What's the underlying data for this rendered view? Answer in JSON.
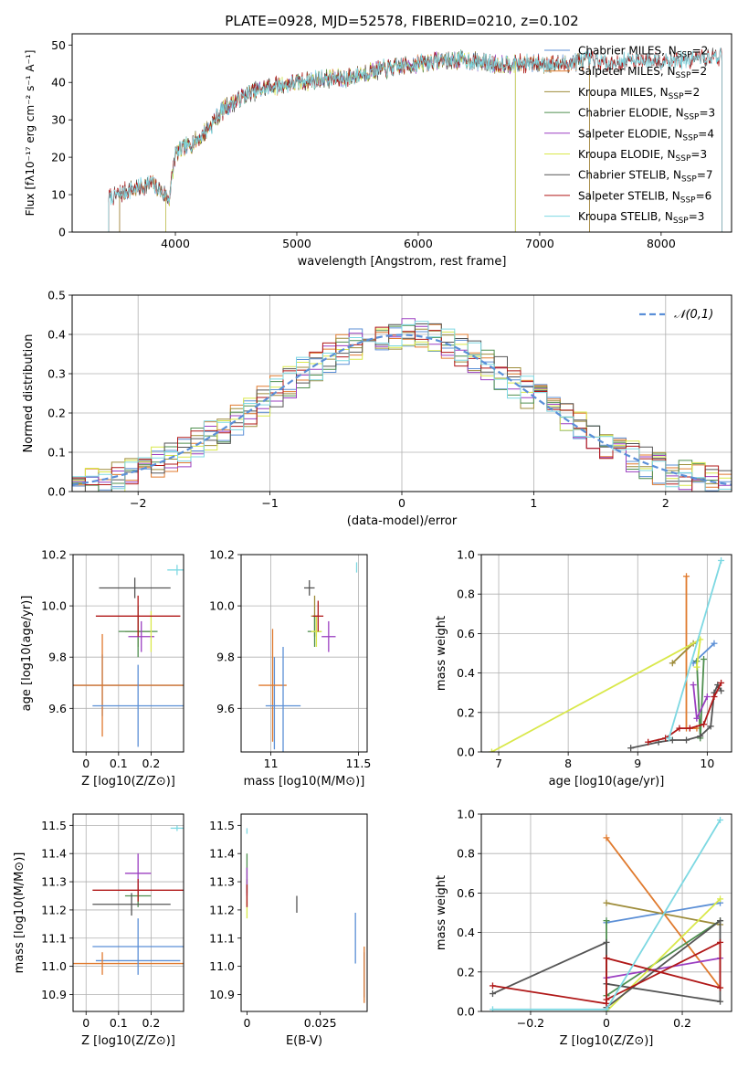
{
  "figure_title": "PLATE=0928, MJD=52578, FIBERID=0210, z=0.102",
  "model_names": [
    "Chabrier MILES",
    "Salpeter MILES",
    "Kroupa MILES",
    "Chabrier ELODIE",
    "Salpeter ELODIE",
    "Kroupa ELODIE",
    "Chabrier STELIB",
    "Salpeter STELIB",
    "Kroupa STELIB"
  ],
  "model_nssp": [
    2,
    2,
    2,
    3,
    4,
    3,
    7,
    6,
    3
  ],
  "model_colors": [
    "#5b8fd6",
    "#e07a2e",
    "#9e8c3a",
    "#4f8f4f",
    "#9b3fc1",
    "#d9e84a",
    "#555555",
    "#b01818",
    "#7dd8e2"
  ],
  "chart_data": [
    {
      "panel": "spectrum",
      "type": "line",
      "title": "PLATE=0928, MJD=52578, FIBERID=0210, z=0.102",
      "xlabel": "wavelength [Angstrom, rest frame]",
      "ylabel": "Flux [fλ10⁻¹⁷ erg cm⁻² s⁻¹ A⁻¹]",
      "xlim": [
        3150,
        8580
      ],
      "ylim": [
        0,
        53
      ],
      "xticks": [
        4000,
        5000,
        6000,
        7000,
        8000
      ],
      "yticks": [
        0,
        10,
        20,
        30,
        40,
        50
      ],
      "grid": false,
      "legend": "top-right",
      "continuum": {
        "x": [
          3450,
          3600,
          3800,
          3950,
          4000,
          4200,
          4400,
          4600,
          4800,
          5000,
          5200,
          5400,
          5600,
          5800,
          6000,
          6200,
          6400,
          6600,
          6800,
          7000,
          7200,
          7400,
          7600,
          7800,
          8000,
          8200,
          8400
        ],
        "y": [
          9,
          11,
          13,
          9,
          21,
          25,
          33,
          37,
          39,
          40,
          41,
          41,
          43,
          44,
          45,
          46,
          46,
          45,
          45,
          45,
          45,
          46,
          45,
          46,
          46,
          46,
          47
        ]
      },
      "noise_amplitude": 2.2,
      "series": [
        {
          "name": "Chabrier MILES, N_SSP=2",
          "x_range": [
            3540,
            7410
          ]
        },
        {
          "name": "Salpeter MILES, N_SSP=2",
          "x_range": [
            3540,
            7410
          ]
        },
        {
          "name": "Kroupa MILES, N_SSP=2",
          "x_range": [
            3540,
            7410
          ]
        },
        {
          "name": "Chabrier ELODIE, N_SSP=3",
          "x_range": [
            3920,
            6800
          ]
        },
        {
          "name": "Salpeter ELODIE, N_SSP=4",
          "x_range": [
            3920,
            6800
          ]
        },
        {
          "name": "Kroupa ELODIE, N_SSP=3",
          "x_range": [
            3920,
            6800
          ]
        },
        {
          "name": "Chabrier STELIB, N_SSP=7",
          "x_range": [
            3450,
            8500
          ]
        },
        {
          "name": "Salpeter STELIB, N_SSP=6",
          "x_range": [
            3450,
            8500
          ]
        },
        {
          "name": "Kroupa STELIB, N_SSP=3",
          "x_range": [
            3450,
            8500
          ]
        }
      ]
    },
    {
      "panel": "residuals",
      "type": "histogram",
      "xlabel": "(data-model)/error",
      "ylabel": "Normed distribution",
      "xlim": [
        -2.5,
        2.5
      ],
      "ylim": [
        0,
        0.5
      ],
      "xticks": [
        -2,
        -1,
        0,
        1,
        2
      ],
      "yticks": [
        0.0,
        0.1,
        0.2,
        0.3,
        0.4,
        0.5
      ],
      "bin_width": 0.1,
      "grid": true,
      "legend": "top-right",
      "reference_curve": "𝒩(0,1)"
    },
    {
      "panel": "age-vs-Z",
      "type": "errorbar",
      "xlabel": "Z [log10(Z/Z⊙)]",
      "ylabel": "age [log10(age/yr)]",
      "xlim": [
        -0.04,
        0.3
      ],
      "ylim": [
        9.43,
        10.2
      ],
      "xticks": [
        0.0,
        0.1,
        0.2
      ],
      "yticks": [
        9.6,
        9.8,
        10.0,
        10.2
      ],
      "grid": true,
      "points": [
        {
          "x": 0.05,
          "xerr": 0.25,
          "y": 9.69,
          "yerr": 0.12
        },
        {
          "x": 0.05,
          "xerr": 0.25,
          "y": 9.69,
          "yerr": 0.2
        },
        {
          "x": 0.16,
          "xerr": 0.04,
          "y": 9.9,
          "yerr": 0.06
        },
        {
          "x": 0.16,
          "xerr": 0.06,
          "y": 9.9,
          "yerr": 0.1
        },
        {
          "x": 0.17,
          "xerr": 0.04,
          "y": 9.88,
          "yerr": 0.06
        },
        {
          "x": 0.2,
          "xerr": 0.0,
          "y": 9.9,
          "yerr": 0.08
        },
        {
          "x": 0.15,
          "xerr": 0.11,
          "y": 10.07,
          "yerr": 0.04
        },
        {
          "x": 0.16,
          "xerr": 0.13,
          "y": 9.96,
          "yerr": 0.08
        },
        {
          "x": 0.28,
          "xerr": 0.03,
          "y": 10.14,
          "yerr": 0.02
        },
        {
          "x": 0.16,
          "xerr": 0.14,
          "y": 9.61,
          "yerr": 0.16
        }
      ]
    },
    {
      "panel": "age-vs-mass",
      "type": "errorbar",
      "xlabel": "mass [log10(M/M⊙)]",
      "ylabel": "",
      "xlim": [
        10.83,
        11.55
      ],
      "ylim": [
        9.43,
        10.2
      ],
      "xticks": [
        11.0,
        11.5
      ],
      "yticks": [
        9.6,
        9.8,
        10.0,
        10.2
      ],
      "grid": true,
      "points": [
        {
          "x": 11.02,
          "xerr": 0.0,
          "y": 9.62,
          "yerr": 0.18
        },
        {
          "x": 11.01,
          "xerr": 0.08,
          "y": 9.69,
          "yerr": 0.22
        },
        {
          "x": 11.25,
          "xerr": 0.02,
          "y": 9.96,
          "yerr": 0.08
        },
        {
          "x": 11.25,
          "xerr": 0.04,
          "y": 9.9,
          "yerr": 0.06
        },
        {
          "x": 11.33,
          "xerr": 0.04,
          "y": 9.88,
          "yerr": 0.06
        },
        {
          "x": 11.26,
          "xerr": 0.03,
          "y": 9.9,
          "yerr": 0.06
        },
        {
          "x": 11.22,
          "xerr": 0.03,
          "y": 10.07,
          "yerr": 0.03
        },
        {
          "x": 11.27,
          "xerr": 0.03,
          "y": 9.96,
          "yerr": 0.06
        },
        {
          "x": 11.49,
          "xerr": 0.0,
          "y": 10.15,
          "yerr": 0.02
        },
        {
          "x": 11.07,
          "xerr": 0.1,
          "y": 9.61,
          "yerr": 0.23
        }
      ]
    },
    {
      "panel": "weight-vs-age",
      "type": "line",
      "xlabel": "age [log10(age/yr)]",
      "ylabel": "mass weight",
      "xlim": [
        6.75,
        10.35
      ],
      "ylim": [
        0,
        1.0
      ],
      "xticks": [
        7,
        8,
        9,
        10
      ],
      "yticks": [
        0.0,
        0.2,
        0.4,
        0.6,
        0.8,
        1.0
      ],
      "grid": true,
      "series": [
        {
          "name": "Chabrier MILES",
          "x": [
            9.8,
            10.1
          ],
          "y": [
            0.45,
            0.55
          ]
        },
        {
          "name": "Salpeter MILES",
          "x": [
            9.7,
            9.7,
            9.85
          ],
          "y": [
            0.89,
            0.12,
            0.12
          ]
        },
        {
          "name": "Kroupa MILES",
          "x": [
            9.5,
            9.8
          ],
          "y": [
            0.45,
            0.55
          ]
        },
        {
          "name": "Chabrier ELODIE",
          "x": [
            9.85,
            9.9,
            9.95
          ],
          "y": [
            0.46,
            0.07,
            0.47
          ]
        },
        {
          "name": "Salpeter ELODIE",
          "x": [
            9.8,
            9.85,
            10.0
          ],
          "y": [
            0.34,
            0.17,
            0.28
          ]
        },
        {
          "name": "Kroupa ELODIE",
          "x": [
            6.9,
            9.9,
            9.85
          ],
          "y": [
            0.0,
            0.57,
            0.43
          ]
        },
        {
          "name": "Chabrier STELIB",
          "x": [
            8.9,
            9.3,
            9.5,
            9.7,
            9.9,
            10.05,
            10.1,
            10.15,
            10.2
          ],
          "y": [
            0.02,
            0.05,
            0.06,
            0.06,
            0.08,
            0.13,
            0.3,
            0.34,
            0.31
          ]
        },
        {
          "name": "Salpeter STELIB",
          "x": [
            9.15,
            9.4,
            9.6,
            9.75,
            9.95,
            10.1,
            10.2
          ],
          "y": [
            0.05,
            0.07,
            0.12,
            0.12,
            0.14,
            0.28,
            0.35
          ]
        },
        {
          "name": "Kroupa STELIB",
          "x": [
            9.45,
            10.2
          ],
          "y": [
            0.07,
            0.97
          ]
        }
      ]
    },
    {
      "panel": "mass-vs-Z",
      "type": "errorbar",
      "xlabel": "Z [log10(Z/Z⊙)]",
      "ylabel": "mass [log10(M/M⊙)]",
      "xlim": [
        -0.04,
        0.3
      ],
      "ylim": [
        10.84,
        11.54
      ],
      "xticks": [
        0.0,
        0.1,
        0.2
      ],
      "yticks": [
        10.9,
        11.0,
        11.1,
        11.2,
        11.3,
        11.4,
        11.5
      ],
      "grid": true,
      "points": [
        {
          "x": 0.16,
          "xerr": 0.13,
          "y": 11.02,
          "yerr": 0.0
        },
        {
          "x": 0.05,
          "xerr": 0.25,
          "y": 11.01,
          "yerr": 0.04
        },
        {
          "x": 0.16,
          "xerr": 0.0,
          "y": 11.25,
          "yerr": 0.03
        },
        {
          "x": 0.16,
          "xerr": 0.04,
          "y": 11.25,
          "yerr": 0.04
        },
        {
          "x": 0.16,
          "xerr": 0.04,
          "y": 11.33,
          "yerr": 0.07
        },
        {
          "x": 0.19,
          "xerr": 0.0,
          "y": 11.25,
          "yerr": 0.0
        },
        {
          "x": 0.14,
          "xerr": 0.12,
          "y": 11.22,
          "yerr": 0.04
        },
        {
          "x": 0.16,
          "xerr": 0.14,
          "y": 11.27,
          "yerr": 0.04
        },
        {
          "x": 0.28,
          "xerr": 0.02,
          "y": 11.49,
          "yerr": 0.01
        },
        {
          "x": 0.16,
          "xerr": 0.14,
          "y": 11.07,
          "yerr": 0.1
        }
      ]
    },
    {
      "panel": "mass-vs-EBV",
      "type": "errorbar",
      "xlabel": "E(B-V)",
      "ylabel": "",
      "xlim": [
        -0.002,
        0.041
      ],
      "ylim": [
        10.84,
        11.54
      ],
      "xticks": [
        0.0,
        0.025
      ],
      "yticks": [
        10.9,
        11.0,
        11.1,
        11.2,
        11.3,
        11.4,
        11.5
      ],
      "grid": false,
      "points": [
        {
          "x": 0.04,
          "xerr": 0.0,
          "y": 10.97,
          "yerr": 0.08
        },
        {
          "x": 0.04,
          "xerr": 0.0,
          "y": 10.97,
          "yerr": 0.1
        },
        {
          "x": 0.0,
          "xerr": 0.0,
          "y": 11.26,
          "yerr": 0.05
        },
        {
          "x": 0.0,
          "xerr": 0.0,
          "y": 11.33,
          "yerr": 0.07
        },
        {
          "x": 0.0,
          "xerr": 0.0,
          "y": 11.3,
          "yerr": 0.05
        },
        {
          "x": 0.0,
          "xerr": 0.0,
          "y": 11.2,
          "yerr": 0.03
        },
        {
          "x": 0.017,
          "xerr": 0.0,
          "y": 11.22,
          "yerr": 0.03
        },
        {
          "x": 0.0,
          "xerr": 0.0,
          "y": 11.25,
          "yerr": 0.04
        },
        {
          "x": 0.0,
          "xerr": 0.0,
          "y": 11.48,
          "yerr": 0.01
        },
        {
          "x": 0.037,
          "xerr": 0.0,
          "y": 11.1,
          "yerr": 0.09
        }
      ]
    },
    {
      "panel": "weight-vs-Z",
      "type": "line",
      "xlabel": "Z [log10(Z/Z⊙)]",
      "ylabel": "mass weight",
      "xlim": [
        -0.33,
        0.33
      ],
      "ylim": [
        0,
        1.0
      ],
      "xticks": [
        -0.2,
        0.0,
        0.2
      ],
      "yticks": [
        0.0,
        0.2,
        0.4,
        0.6,
        0.8,
        1.0
      ],
      "grid": true,
      "series": [
        {
          "name": "Chabrier MILES",
          "x": [
            0.0,
            0.3
          ],
          "y": [
            0.45,
            0.55
          ]
        },
        {
          "name": "Salpeter MILES",
          "x": [
            0.0,
            0.3
          ],
          "y": [
            0.88,
            0.12
          ]
        },
        {
          "name": "Kroupa MILES",
          "x": [
            0.0,
            0.3
          ],
          "y": [
            0.55,
            0.44
          ]
        },
        {
          "name": "Chabrier ELODIE",
          "x": [
            0.0,
            0.0,
            0.3
          ],
          "y": [
            0.46,
            0.08,
            0.46
          ]
        },
        {
          "name": "Salpeter ELODIE",
          "x": [
            0.0,
            0.3
          ],
          "y": [
            0.17,
            0.27
          ]
        },
        {
          "name": "Kroupa ELODIE",
          "x": [
            0.0,
            0.3
          ],
          "y": [
            0.0,
            0.57
          ]
        },
        {
          "name": "Chabrier STELIB",
          "x": [
            -0.3,
            0.0,
            0.0,
            0.3,
            0.3,
            0.0
          ],
          "y": [
            0.09,
            0.35,
            0.14,
            0.05,
            0.46,
            0.02
          ]
        },
        {
          "name": "Salpeter STELIB",
          "x": [
            -0.3,
            0.0,
            0.0,
            0.3,
            0.3,
            0.0
          ],
          "y": [
            0.13,
            0.04,
            0.27,
            0.12,
            0.35,
            0.06
          ]
        },
        {
          "name": "Kroupa STELIB",
          "x": [
            -0.3,
            0.0,
            0.3
          ],
          "y": [
            0.01,
            0.01,
            0.97
          ]
        }
      ]
    }
  ]
}
